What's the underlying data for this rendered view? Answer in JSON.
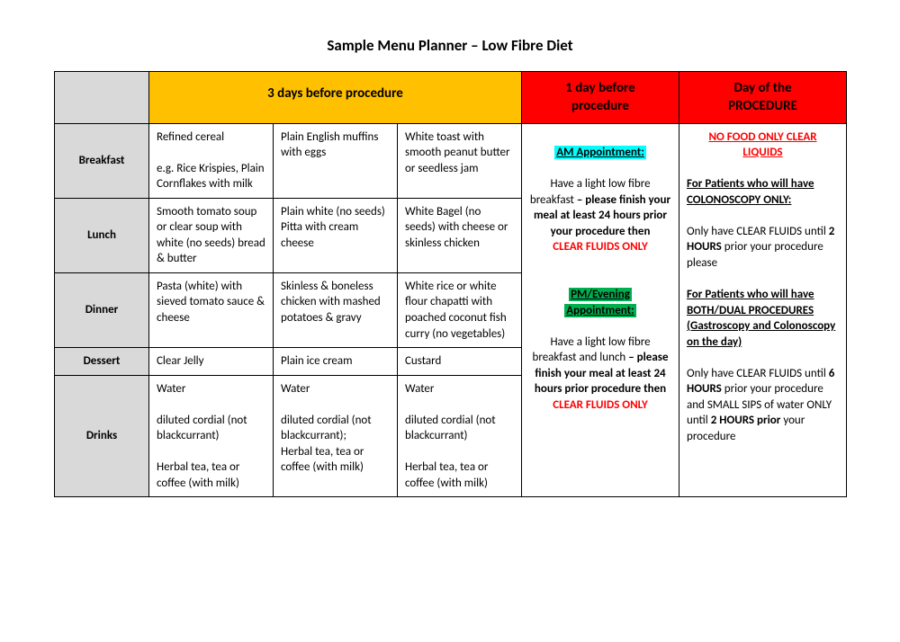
{
  "title": "Sample Menu Planner – Low Fibre Diet",
  "colors": {
    "header_3days_bg": "#ffc000",
    "header_1day_bg": "#ff0000",
    "header_proc_bg": "#ff0000",
    "rowlabel_bg": "#d9d9d9",
    "highlight_am_bg": "#00ffff",
    "highlight_pm_bg": "#00b050",
    "emphasis_text": "#ff0000"
  },
  "headers": {
    "three_days": "3 days before procedure",
    "one_day_l1": "1 day before",
    "one_day_l2": "procedure",
    "proc_l1": "Day of the",
    "proc_l2": "PROCEDURE"
  },
  "rows": {
    "breakfast": {
      "label": "Breakfast",
      "d1a": "Refined cereal",
      "d1b": "e.g. Rice Krispies, Plain Cornflakes with milk",
      "d2": "Plain English muffins with eggs",
      "d3": "White toast with smooth peanut butter or seedless jam"
    },
    "lunch": {
      "label": "Lunch",
      "d1": "Smooth tomato soup or clear soup  with white (no seeds) bread & butter",
      "d2": "Plain white (no seeds)  Pitta with cream cheese",
      "d3": "White Bagel (no seeds) with cheese or skinless chicken"
    },
    "dinner": {
      "label": "Dinner",
      "d1": "Pasta (white) with sieved tomato sauce & cheese",
      "d2": "Skinless & boneless chicken with mashed potatoes & gravy",
      "d3": "White rice or white flour chapatti with poached coconut fish  curry (no vegetables)"
    },
    "dessert": {
      "label": "Dessert",
      "d1": "Clear Jelly",
      "d2": "Plain ice cream",
      "d3": "Custard"
    },
    "drinks": {
      "label": "Drinks",
      "d1a": "Water",
      "d1b": " diluted cordial (not blackcurrant)",
      "d1c": "Herbal tea, tea or coffee (with milk)",
      "d2a": "Water",
      "d2b": " diluted cordial (not blackcurrant);",
      "d2c": "Herbal tea, tea or coffee (with milk)",
      "d3a": "Water",
      "d3b": " diluted cordial (not blackcurrant)",
      "d3c": "Herbal tea, tea or coffee (with milk)"
    }
  },
  "one_day": {
    "am_label": "AM Appointment:",
    "am_text1": "Have a light low fibre breakfast ",
    "am_text2": "– please finish your meal at least 24 hours prior your procedure then",
    "am_clear": "CLEAR FLUIDS ONLY",
    "pm_label1": "PM/Evening",
    "pm_label2": "Appointment:",
    "pm_text1": "Have a light low fibre breakfast and lunch ",
    "pm_text2": "– please finish your meal at least 24 hours prior procedure then",
    "pm_clear": "CLEAR FLUIDS ONLY"
  },
  "proc": {
    "no_food_l1": "NO FOOD ONLY CLEAR",
    "no_food_l2": "LIQUIDS",
    "sec1_title": "For Patients who will have COLONOSCOPY ONLY:",
    "sec1_t1": "Only have CLEAR FLUIDS until ",
    "sec1_b1": "2 HOURS",
    "sec1_t2": " prior your procedure please",
    "sec2_title": "For Patients who will have BOTH/DUAL PROCEDURES (Gastroscopy and Colonoscopy on the day)",
    "sec2_t1": "Only have CLEAR FLUIDS until ",
    "sec2_b1": "6 HOURS",
    "sec2_t2": " prior your procedure and SMALL SIPS of water ONLY until ",
    "sec2_b2": "2 HOURS prior",
    "sec2_t3": " your procedure"
  }
}
